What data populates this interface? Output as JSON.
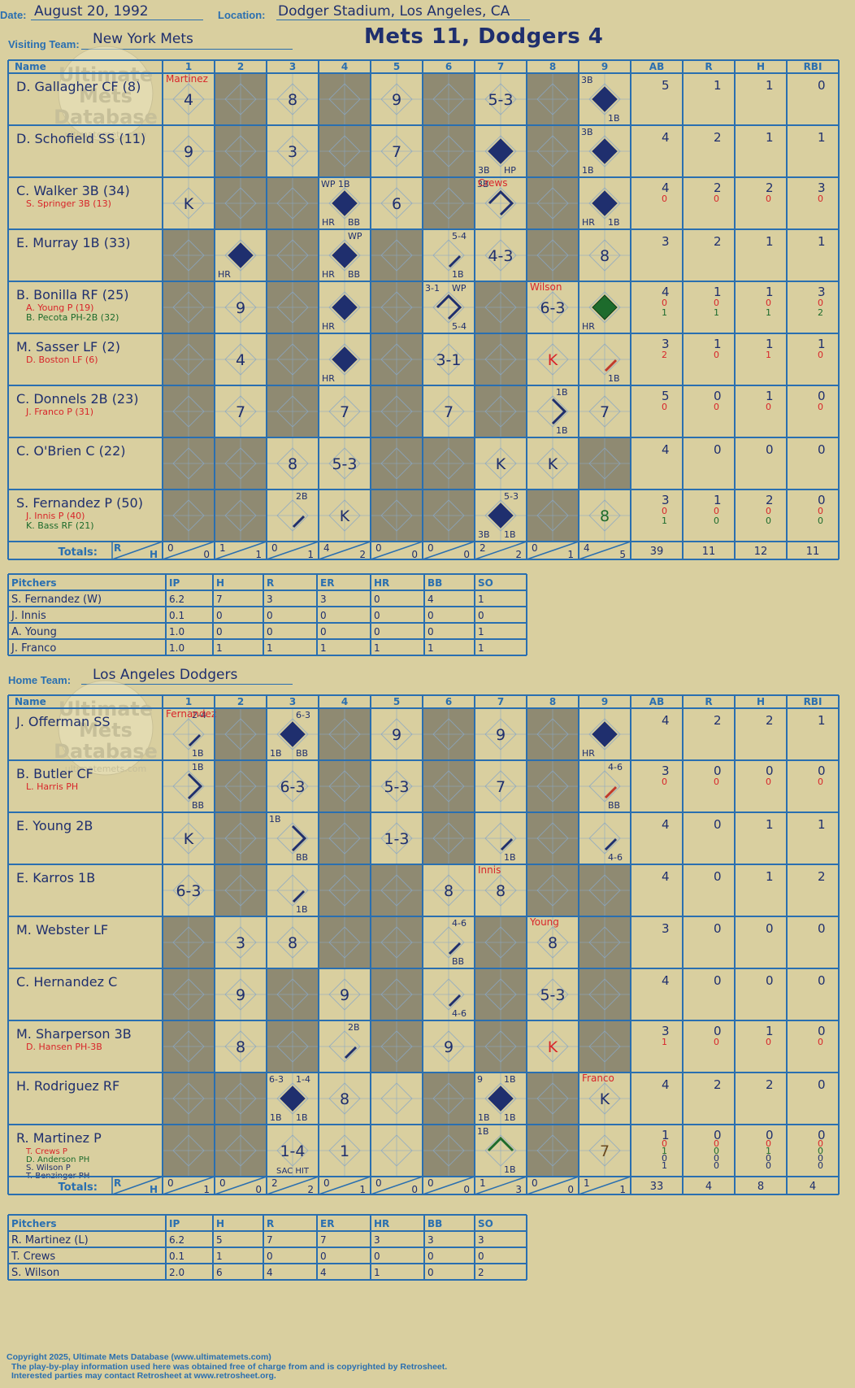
{
  "header": {
    "date_label": "Date:",
    "date": "August 20, 1992",
    "location_label": "Location:",
    "location": "Dodger Stadium, Los Angeles, CA",
    "visiting_label": "Visiting Team:",
    "visiting_team": "New York Mets",
    "title": "Mets 11, Dodgers 4",
    "home_label": "Home Team:",
    "home_team": "Los Angeles Dodgers"
  },
  "columns": {
    "name": "Name",
    "innings": [
      "1",
      "2",
      "3",
      "4",
      "5",
      "6",
      "7",
      "8",
      "9"
    ],
    "stats": [
      "AB",
      "R",
      "H",
      "RBI"
    ],
    "totals_label": "Totals:",
    "r_label": "R",
    "h_label": "H"
  },
  "watermark": {
    "line1": "Ultimate",
    "line2": "Mets",
    "line3": "Database",
    "url": "ultimatemets.com"
  },
  "colors": {
    "background": "#d9cf9f",
    "grid": "#2a6fb0",
    "ink": "#1f2f6e",
    "shade": "#8f8a72",
    "red": "#d8252a",
    "green": "#1d6b2c",
    "sub_red": "#c0392b"
  },
  "visitors": {
    "rows": [
      {
        "name": "D. Gallagher CF (8)",
        "subs": [],
        "stats": [
          [
            "5"
          ],
          [
            "1"
          ],
          [
            "1"
          ],
          [
            "0"
          ]
        ],
        "cells": [
          {
            "i": 1,
            "t": "4",
            "p": "Martinez"
          },
          {
            "i": 3,
            "t": "8"
          },
          {
            "i": 5,
            "t": "9"
          },
          {
            "i": 7,
            "t": "5-3"
          },
          {
            "i": 9,
            "s": "full",
            "tl": "3B",
            "br": "1B"
          }
        ]
      },
      {
        "name": "D. Schofield SS (11)",
        "subs": [],
        "stats": [
          [
            "4"
          ],
          [
            "2"
          ],
          [
            "1"
          ],
          [
            "1"
          ]
        ],
        "cells": [
          {
            "i": 1,
            "t": "9"
          },
          {
            "i": 3,
            "t": "3"
          },
          {
            "i": 5,
            "t": "7"
          },
          {
            "i": 7,
            "s": "full",
            "bl": "3B",
            "br": "HP"
          },
          {
            "i": 9,
            "s": "full",
            "tl": "3B",
            "bl": "1B"
          }
        ]
      },
      {
        "name": "C. Walker 3B (34)",
        "subs": [
          {
            "n": "S. Springer 3B (13)",
            "c": "red"
          }
        ],
        "stats": [
          [
            "4",
            "0"
          ],
          [
            "2",
            "0"
          ],
          [
            "2",
            "0"
          ],
          [
            "3",
            "0"
          ]
        ],
        "cells": [
          {
            "i": 1,
            "t": "K"
          },
          {
            "i": 4,
            "s": "full",
            "tl": "WP 1B",
            "bl": "HR",
            "br": "BB"
          },
          {
            "i": 5,
            "t": "6"
          },
          {
            "i": 7,
            "s": "outline",
            "tl": "3B",
            "p": "Crews"
          },
          {
            "i": 9,
            "s": "full",
            "bl": "HR",
            "br": "1B"
          }
        ]
      },
      {
        "name": "E. Murray 1B (33)",
        "subs": [],
        "stats": [
          [
            "3"
          ],
          [
            "2"
          ],
          [
            "1"
          ],
          [
            "1"
          ]
        ],
        "cells": [
          {
            "i": 2,
            "s": "full",
            "bl": "HR"
          },
          {
            "i": 4,
            "s": "full",
            "tr": "WP",
            "bl": "HR",
            "br": "BB"
          },
          {
            "i": 6,
            "s": "seg",
            "tr": "5-4",
            "br": "1B"
          },
          {
            "i": 7,
            "t": "4-3"
          },
          {
            "i": 9,
            "t": "8"
          }
        ]
      },
      {
        "name": "B. Bonilla RF (25)",
        "subs": [
          {
            "n": "A. Young P (19)",
            "c": "red"
          },
          {
            "n": "B. Pecota PH-2B (32)",
            "c": "green"
          }
        ],
        "stats": [
          [
            "4",
            "0",
            "1"
          ],
          [
            "1",
            "0",
            "1"
          ],
          [
            "1",
            "0",
            "1"
          ],
          [
            "3",
            "0",
            "2"
          ]
        ],
        "cells": [
          {
            "i": 2,
            "t": "9"
          },
          {
            "i": 4,
            "s": "full",
            "bl": "HR"
          },
          {
            "i": 6,
            "s": "outline",
            "tl": "3-1",
            "tr": "WP",
            "br": "5-4"
          },
          {
            "i": 8,
            "t": "6-3",
            "p": "Wilson"
          },
          {
            "i": 9,
            "s": "green",
            "bl": "HR"
          }
        ]
      },
      {
        "name": "M. Sasser LF (2)",
        "subs": [
          {
            "n": "D. Boston LF (6)",
            "c": "red"
          }
        ],
        "stats": [
          [
            "3",
            "2"
          ],
          [
            "1",
            "0"
          ],
          [
            "1",
            "1"
          ],
          [
            "1",
            "0"
          ]
        ],
        "cells": [
          {
            "i": 2,
            "t": "4"
          },
          {
            "i": 4,
            "s": "full",
            "bl": "HR"
          },
          {
            "i": 6,
            "t": "3-1"
          },
          {
            "i": 8,
            "t": "K",
            "tc": "red"
          },
          {
            "i": 9,
            "s": "seg-red",
            "br": "1B"
          }
        ]
      },
      {
        "name": "C. Donnels 2B (23)",
        "subs": [
          {
            "n": "J. Franco P (31)",
            "c": "red"
          }
        ],
        "stats": [
          [
            "5",
            "0"
          ],
          [
            "0",
            "0"
          ],
          [
            "1",
            "0"
          ],
          [
            "0",
            "0"
          ]
        ],
        "cells": [
          {
            "i": 2,
            "t": "7"
          },
          {
            "i": 4,
            "t": "7"
          },
          {
            "i": 6,
            "t": "7"
          },
          {
            "i": 8,
            "s": "right",
            "tr": "1B",
            "br": "1B"
          },
          {
            "i": 9,
            "t": "7"
          }
        ]
      },
      {
        "name": "C. O'Brien C (22)",
        "subs": [],
        "stats": [
          [
            "4"
          ],
          [
            "0"
          ],
          [
            "0"
          ],
          [
            "0"
          ]
        ],
        "cells": [
          {
            "i": 3,
            "t": "8"
          },
          {
            "i": 4,
            "t": "5-3"
          },
          {
            "i": 7,
            "t": "K"
          },
          {
            "i": 8,
            "t": "K"
          }
        ]
      },
      {
        "name": "S. Fernandez P (50)",
        "subs": [
          {
            "n": "J. Innis P (40)",
            "c": "red"
          },
          {
            "n": "K. Bass RF (21)",
            "c": "green"
          }
        ],
        "stats": [
          [
            "3",
            "0",
            "1"
          ],
          [
            "1",
            "0",
            "0"
          ],
          [
            "2",
            "0",
            "0"
          ],
          [
            "0",
            "0",
            "0"
          ]
        ],
        "cells": [
          {
            "i": 3,
            "s": "seg",
            "tr": "2B"
          },
          {
            "i": 4,
            "t": "K"
          },
          {
            "i": 7,
            "s": "full",
            "tr": "5-3",
            "bl": "3B",
            "br": "1B"
          },
          {
            "i": 9,
            "t": "8",
            "tc": "green"
          }
        ]
      }
    ],
    "shade": [
      [
        2,
        4,
        6,
        8
      ],
      [
        2,
        4,
        6,
        8
      ],
      [
        2,
        3,
        6,
        8
      ],
      [
        1,
        3,
        5,
        8
      ],
      [
        1,
        3,
        5,
        7
      ],
      [
        1,
        3,
        5,
        7
      ],
      [
        1,
        3,
        5,
        7
      ],
      [
        1,
        2,
        5,
        6,
        9
      ],
      [
        1,
        2,
        5,
        6,
        8
      ]
    ],
    "totals": [
      [
        "0",
        "0"
      ],
      [
        "1",
        "1"
      ],
      [
        "0",
        "1"
      ],
      [
        "4",
        "2"
      ],
      [
        "0",
        "0"
      ],
      [
        "0",
        "0"
      ],
      [
        "2",
        "2"
      ],
      [
        "0",
        "1"
      ],
      [
        "4",
        "5"
      ]
    ],
    "total_stats": [
      "39",
      "11",
      "12",
      "11"
    ],
    "pitchers": {
      "header": [
        "Pitchers",
        "IP",
        "H",
        "R",
        "ER",
        "HR",
        "BB",
        "SO"
      ],
      "rows": [
        [
          "S. Fernandez (W)",
          "6.2",
          "7",
          "3",
          "3",
          "0",
          "4",
          "1"
        ],
        [
          "J. Innis",
          "0.1",
          "0",
          "0",
          "0",
          "0",
          "0",
          "0"
        ],
        [
          "A. Young",
          "1.0",
          "0",
          "0",
          "0",
          "0",
          "0",
          "1"
        ],
        [
          "J. Franco",
          "1.0",
          "1",
          "1",
          "1",
          "1",
          "1",
          "1"
        ]
      ]
    }
  },
  "home": {
    "rows": [
      {
        "name": "J. Offerman SS",
        "subs": [],
        "stats": [
          [
            "4"
          ],
          [
            "2"
          ],
          [
            "2"
          ],
          [
            "1"
          ]
        ],
        "cells": [
          {
            "i": 1,
            "s": "seg",
            "tr": "2-4",
            "br": "1B",
            "p": "Fernandez"
          },
          {
            "i": 3,
            "s": "full",
            "tr": "6-3",
            "bl": "1B",
            "br": "BB"
          },
          {
            "i": 5,
            "t": "9"
          },
          {
            "i": 7,
            "t": "9"
          },
          {
            "i": 9,
            "s": "full",
            "bl": "HR"
          }
        ]
      },
      {
        "name": "B. Butler CF",
        "subs": [
          {
            "n": "L. Harris PH",
            "c": "red"
          }
        ],
        "stats": [
          [
            "3",
            "0"
          ],
          [
            "0",
            "0"
          ],
          [
            "0",
            "0"
          ],
          [
            "0",
            "0"
          ]
        ],
        "cells": [
          {
            "i": 1,
            "s": "right",
            "tr": "1B",
            "br": "BB"
          },
          {
            "i": 3,
            "t": "6-3"
          },
          {
            "i": 5,
            "t": "5-3"
          },
          {
            "i": 7,
            "t": "7"
          },
          {
            "i": 9,
            "s": "seg-red",
            "tr": "4-6",
            "br": "BB"
          }
        ]
      },
      {
        "name": "E. Young 2B",
        "subs": [],
        "stats": [
          [
            "4"
          ],
          [
            "0"
          ],
          [
            "1"
          ],
          [
            "1"
          ]
        ],
        "cells": [
          {
            "i": 1,
            "t": "K"
          },
          {
            "i": 3,
            "s": "right",
            "tl": "1B",
            "br": "BB"
          },
          {
            "i": 5,
            "t": "1-3"
          },
          {
            "i": 7,
            "s": "seg",
            "br": "1B"
          },
          {
            "i": 9,
            "s": "seg",
            "br": "4-6"
          }
        ]
      },
      {
        "name": "E. Karros 1B",
        "subs": [],
        "stats": [
          [
            "4"
          ],
          [
            "0"
          ],
          [
            "1"
          ],
          [
            "2"
          ]
        ],
        "cells": [
          {
            "i": 1,
            "t": "6-3"
          },
          {
            "i": 3,
            "s": "seg",
            "br": "1B"
          },
          {
            "i": 6,
            "t": "8"
          },
          {
            "i": 7,
            "t": "8",
            "p": "Innis"
          }
        ]
      },
      {
        "name": "M. Webster LF",
        "subs": [],
        "stats": [
          [
            "3"
          ],
          [
            "0"
          ],
          [
            "0"
          ],
          [
            "0"
          ]
        ],
        "cells": [
          {
            "i": 2,
            "t": "3"
          },
          {
            "i": 3,
            "t": "8"
          },
          {
            "i": 6,
            "s": "seg",
            "tr": "4-6",
            "br": "BB"
          },
          {
            "i": 8,
            "t": "8",
            "p": "Young"
          }
        ]
      },
      {
        "name": "C. Hernandez C",
        "subs": [],
        "stats": [
          [
            "4"
          ],
          [
            "0"
          ],
          [
            "0"
          ],
          [
            "0"
          ]
        ],
        "cells": [
          {
            "i": 2,
            "t": "9"
          },
          {
            "i": 4,
            "t": "9"
          },
          {
            "i": 6,
            "s": "seg",
            "br": "4-6"
          },
          {
            "i": 8,
            "t": "5-3"
          }
        ]
      },
      {
        "name": "M. Sharperson 3B",
        "subs": [
          {
            "n": "D. Hansen PH-3B",
            "c": "red"
          }
        ],
        "stats": [
          [
            "3",
            "1"
          ],
          [
            "0",
            "0"
          ],
          [
            "1",
            "0"
          ],
          [
            "0",
            "0"
          ]
        ],
        "cells": [
          {
            "i": 2,
            "t": "8"
          },
          {
            "i": 4,
            "s": "seg",
            "tr": "2B"
          },
          {
            "i": 6,
            "t": "9"
          },
          {
            "i": 8,
            "t": "K",
            "tc": "red"
          }
        ]
      },
      {
        "name": "H. Rodriguez RF",
        "subs": [],
        "stats": [
          [
            "4"
          ],
          [
            "2"
          ],
          [
            "2"
          ],
          [
            "0"
          ]
        ],
        "cells": [
          {
            "i": 3,
            "s": "full",
            "tl": "6-3",
            "tr": "1-4",
            "bl": "1B",
            "br": "1B"
          },
          {
            "i": 4,
            "t": "8"
          },
          {
            "i": 7,
            "s": "full",
            "tl": "9",
            "tr": "1B",
            "bl": "1B",
            "br": "1B"
          },
          {
            "i": 9,
            "t": "K",
            "p": "Franco"
          }
        ]
      },
      {
        "name": "R. Martinez P",
        "subs": [
          {
            "n": "T. Crews P",
            "c": "red"
          },
          {
            "n": "D. Anderson PH",
            "c": "green"
          },
          {
            "n": "S. Wilson P",
            "c": "ink"
          },
          {
            "n": "T. Benzinger PH",
            "c": "ink"
          }
        ],
        "stats": [
          [
            "1",
            "0",
            "1",
            "0",
            "1"
          ],
          [
            "0",
            "0",
            "0",
            "0",
            "0"
          ],
          [
            "0",
            "0",
            "1",
            "0",
            "0"
          ],
          [
            "0",
            "0",
            "0",
            "0",
            "0"
          ]
        ],
        "cells": [
          {
            "i": 3,
            "t": "1-4",
            "b": "SAC HIT"
          },
          {
            "i": 4,
            "t": "1"
          },
          {
            "i": 7,
            "s": "green-out",
            "tl": "1B",
            "br": "1B"
          },
          {
            "i": 9,
            "t": "7",
            "tc": "brown"
          }
        ]
      }
    ],
    "shade": [
      [
        2,
        4,
        6,
        8
      ],
      [
        2,
        4,
        6,
        8
      ],
      [
        2,
        4,
        6,
        8
      ],
      [
        2,
        4,
        5,
        8,
        9
      ],
      [
        1,
        4,
        5,
        7,
        9
      ],
      [
        1,
        3,
        5,
        7,
        9
      ],
      [
        1,
        3,
        5,
        7,
        9
      ],
      [
        1,
        2,
        6,
        8
      ],
      [
        1,
        2,
        6,
        8
      ]
    ],
    "totals": [
      [
        "0",
        "1"
      ],
      [
        "0",
        "0"
      ],
      [
        "2",
        "2"
      ],
      [
        "0",
        "1"
      ],
      [
        "0",
        "0"
      ],
      [
        "0",
        "0"
      ],
      [
        "1",
        "3"
      ],
      [
        "0",
        "0"
      ],
      [
        "1",
        "1"
      ]
    ],
    "total_stats": [
      "33",
      "4",
      "8",
      "4"
    ],
    "pitchers": {
      "header": [
        "Pitchers",
        "IP",
        "H",
        "R",
        "ER",
        "HR",
        "BB",
        "SO"
      ],
      "rows": [
        [
          "R. Martinez (L)",
          "6.2",
          "5",
          "7",
          "7",
          "3",
          "3",
          "3"
        ],
        [
          "T. Crews",
          "0.1",
          "1",
          "0",
          "0",
          "0",
          "0",
          "0"
        ],
        [
          "S. Wilson",
          "2.0",
          "6",
          "4",
          "4",
          "1",
          "0",
          "2"
        ]
      ]
    }
  },
  "footer": {
    "line1": "Copyright 2025, Ultimate Mets Database (www.ultimatemets.com)",
    "line2": "The play-by-play information used here was obtained free of charge from and is copyrighted by Retrosheet.",
    "line3": "Interested parties may contact Retrosheet at www.retrosheet.org."
  }
}
